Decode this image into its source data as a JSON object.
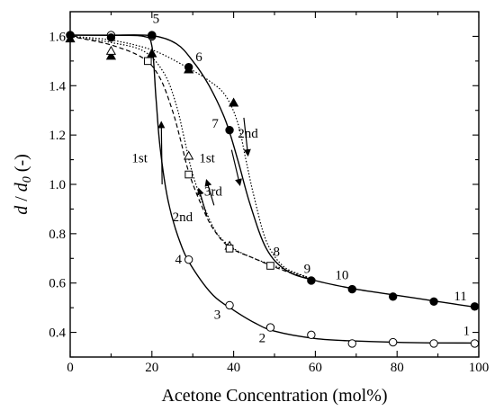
{
  "chart_data": {
    "type": "scatter",
    "xlabel": "Acetone Concentration (mol%)",
    "ylabel_parts": [
      "d",
      " / ",
      "d",
      "0",
      " (-)"
    ],
    "xlim": [
      0,
      100
    ],
    "ylim": [
      0.3,
      1.7
    ],
    "xticks": [
      "0",
      "20",
      "40",
      "60",
      "80",
      "100"
    ],
    "yticks": [
      "0.4",
      "0.6",
      "0.8",
      "1.0",
      "1.2",
      "1.4",
      "1.6"
    ],
    "grid": false,
    "series": [
      {
        "marker": "open-circle",
        "line": "solid",
        "points": [
          [
            0,
            1.605
          ],
          [
            10,
            1.605
          ],
          [
            20,
            1.6
          ],
          [
            29,
            0.695
          ],
          [
            39,
            0.51
          ],
          [
            49,
            0.42
          ],
          [
            59,
            0.39
          ],
          [
            69,
            0.355
          ],
          [
            79,
            0.36
          ],
          [
            89,
            0.355
          ],
          [
            99,
            0.355
          ]
        ],
        "curve": [
          [
            0,
            1.605
          ],
          [
            10,
            1.604
          ],
          [
            18,
            1.6
          ],
          [
            20,
            1.56
          ],
          [
            21,
            1.35
          ],
          [
            22,
            1.15
          ],
          [
            24,
            0.93
          ],
          [
            27,
            0.76
          ],
          [
            30,
            0.66
          ],
          [
            35,
            0.55
          ],
          [
            40,
            0.49
          ],
          [
            45,
            0.44
          ],
          [
            50,
            0.405
          ],
          [
            60,
            0.375
          ],
          [
            70,
            0.365
          ],
          [
            85,
            0.358
          ],
          [
            100,
            0.357
          ]
        ]
      },
      {
        "marker": "filled-circle",
        "line": "solid",
        "points": [
          [
            0,
            1.605
          ],
          [
            10,
            1.595
          ],
          [
            20,
            1.605
          ],
          [
            29,
            1.475
          ],
          [
            39,
            1.22
          ],
          [
            59,
            0.61
          ],
          [
            69,
            0.575
          ],
          [
            79,
            0.545
          ],
          [
            89,
            0.525
          ],
          [
            99,
            0.505
          ]
        ],
        "curve": [
          [
            0,
            1.605
          ],
          [
            10,
            1.605
          ],
          [
            20,
            1.603
          ],
          [
            26,
            1.57
          ],
          [
            30,
            1.5
          ],
          [
            34,
            1.4
          ],
          [
            38,
            1.26
          ],
          [
            41,
            1.1
          ],
          [
            44,
            0.92
          ],
          [
            48,
            0.74
          ],
          [
            53,
            0.65
          ],
          [
            60,
            0.61
          ],
          [
            70,
            0.575
          ],
          [
            80,
            0.55
          ],
          [
            90,
            0.525
          ],
          [
            100,
            0.5
          ]
        ]
      },
      {
        "marker": "filled-triangle",
        "line": "dotted",
        "points": [
          [
            0,
            1.59
          ],
          [
            10,
            1.52
          ],
          [
            20,
            1.53
          ],
          [
            29,
            1.465
          ],
          [
            40,
            1.33
          ]
        ],
        "curve": [
          [
            0,
            1.6
          ],
          [
            10,
            1.585
          ],
          [
            20,
            1.545
          ],
          [
            28,
            1.48
          ],
          [
            34,
            1.42
          ],
          [
            38,
            1.36
          ],
          [
            41,
            1.25
          ],
          [
            43,
            1.1
          ],
          [
            45,
            0.95
          ],
          [
            48,
            0.77
          ],
          [
            52,
            0.67
          ],
          [
            57,
            0.63
          ],
          [
            60,
            0.61
          ]
        ]
      },
      {
        "marker": "open-triangle",
        "line": "dotted",
        "points": [
          [
            10,
            1.54
          ],
          [
            29,
            1.115
          ],
          [
            39,
            0.75
          ]
        ],
        "curve": [
          [
            0,
            1.6
          ],
          [
            10,
            1.575
          ],
          [
            18,
            1.54
          ],
          [
            23,
            1.45
          ],
          [
            26,
            1.32
          ],
          [
            28,
            1.18
          ],
          [
            30,
            1.04
          ],
          [
            33,
            0.9
          ],
          [
            36,
            0.8
          ],
          [
            40,
            0.74
          ],
          [
            45,
            0.7
          ],
          [
            50,
            0.67
          ],
          [
            55,
            0.64
          ],
          [
            60,
            0.615
          ]
        ]
      },
      {
        "marker": "open-square",
        "line": "dashed",
        "points": [
          [
            19,
            1.5
          ],
          [
            29,
            1.04
          ],
          [
            39,
            0.74
          ],
          [
            49,
            0.67
          ]
        ],
        "curve": [
          [
            0,
            1.6
          ],
          [
            10,
            1.565
          ],
          [
            18,
            1.51
          ],
          [
            22,
            1.43
          ],
          [
            25,
            1.3
          ],
          [
            27,
            1.18
          ],
          [
            29,
            1.05
          ],
          [
            32,
            0.92
          ],
          [
            35,
            0.82
          ],
          [
            39,
            0.745
          ],
          [
            45,
            0.7
          ],
          [
            50,
            0.665
          ],
          [
            55,
            0.635
          ],
          [
            60,
            0.61
          ]
        ]
      }
    ],
    "annotations": [
      {
        "text": "1",
        "x": 97,
        "y": 0.39
      },
      {
        "text": "2",
        "x": 47,
        "y": 0.36
      },
      {
        "text": "3",
        "x": 36,
        "y": 0.455
      },
      {
        "text": "4",
        "x": 26.5,
        "y": 0.68
      },
      {
        "text": "5",
        "x": 21,
        "y": 1.655
      },
      {
        "text": "6",
        "x": 31.5,
        "y": 1.5
      },
      {
        "text": "7",
        "x": 35.5,
        "y": 1.23
      },
      {
        "text": "8",
        "x": 50.5,
        "y": 0.71
      },
      {
        "text": "9",
        "x": 58,
        "y": 0.64
      },
      {
        "text": "10",
        "x": 66.5,
        "y": 0.615
      },
      {
        "text": "11",
        "x": 95.5,
        "y": 0.53
      }
    ],
    "arrow_labels": [
      {
        "text": "1st",
        "x": 17,
        "y": 1.09
      },
      {
        "text": "1st",
        "x": 33.5,
        "y": 1.09
      },
      {
        "text": "2nd",
        "x": 43.5,
        "y": 1.19
      },
      {
        "text": "3rd",
        "x": 35,
        "y": 0.955
      },
      {
        "text": "2nd",
        "x": 27.5,
        "y": 0.85
      }
    ],
    "arrows": [
      {
        "from": [
          22.5,
          1.0
        ],
        "to": [
          22.3,
          1.25
        ]
      },
      {
        "from": [
          39.5,
          1.14
        ],
        "to": [
          41.5,
          1.0
        ]
      },
      {
        "from": [
          42.5,
          1.27
        ],
        "to": [
          43.5,
          1.12
        ]
      },
      {
        "from": [
          33.5,
          0.87
        ],
        "to": [
          31.5,
          0.98
        ]
      },
      {
        "from": [
          35.2,
          0.915
        ],
        "to": [
          33.4,
          1.015
        ]
      }
    ]
  }
}
